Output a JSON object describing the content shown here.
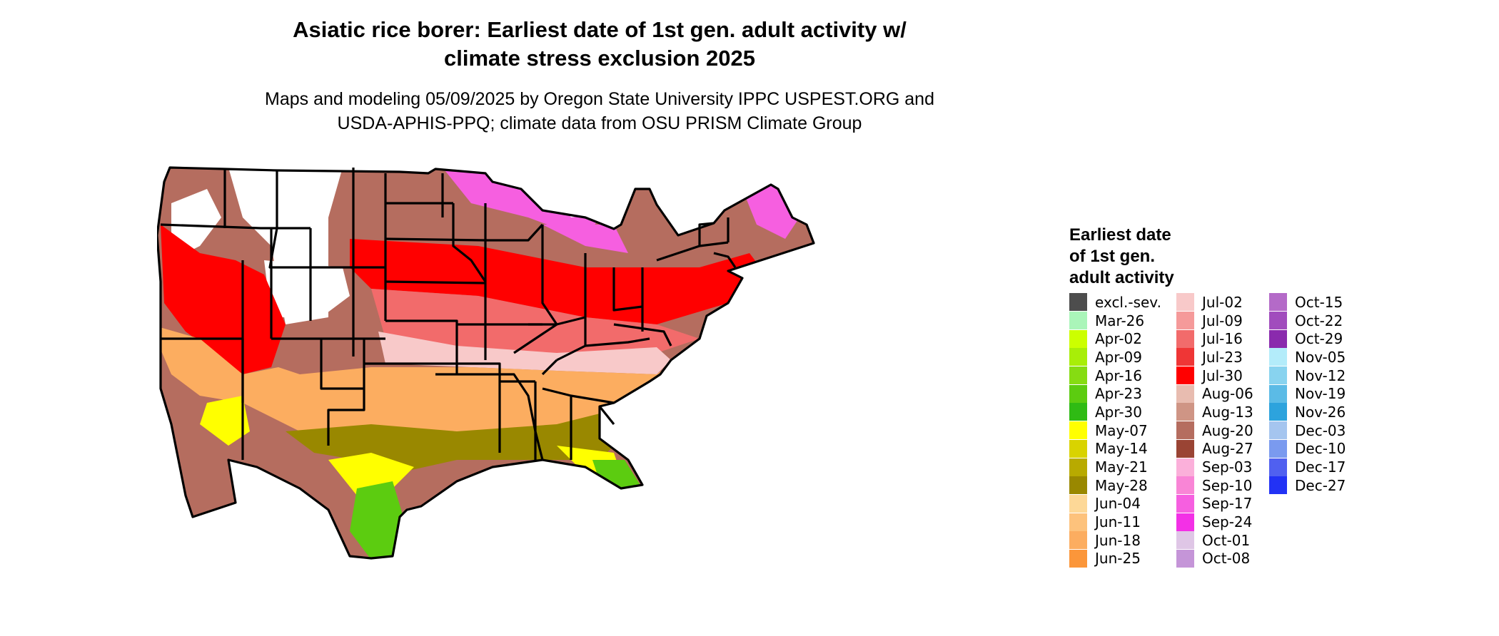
{
  "title": {
    "line1": "Asiatic rice borer: Earliest date of 1st gen. adult activity w/",
    "line2": "climate stress exclusion 2025"
  },
  "subtitle": {
    "line1": "Maps and modeling 05/09/2025 by Oregon State University IPPC USPEST.ORG and",
    "line2": "USDA-APHIS-PPQ; climate data from OSU PRISM Climate Group"
  },
  "legend": {
    "title_lines": [
      "Earliest date",
      "of 1st gen.",
      "adult activity"
    ],
    "columns": [
      [
        {
          "label": "excl.-sev.",
          "color": "#4d4d4d"
        },
        {
          "label": "Mar-26",
          "color": "#aaf5b9"
        },
        {
          "label": "Apr-02",
          "color": "#ccff00"
        },
        {
          "label": "Apr-09",
          "color": "#a8ee08"
        },
        {
          "label": "Apr-16",
          "color": "#86dc12"
        },
        {
          "label": "Apr-23",
          "color": "#5ccc10"
        },
        {
          "label": "Apr-30",
          "color": "#2fbb14"
        },
        {
          "label": "May-07",
          "color": "#ffff00"
        },
        {
          "label": "May-14",
          "color": "#d9d300"
        },
        {
          "label": "May-21",
          "color": "#b8aa00"
        },
        {
          "label": "May-28",
          "color": "#998800"
        },
        {
          "label": "Jun-04",
          "color": "#fdd897"
        },
        {
          "label": "Jun-11",
          "color": "#fdc27c"
        },
        {
          "label": "Jun-18",
          "color": "#fcad60"
        },
        {
          "label": "Jun-25",
          "color": "#fb963a"
        }
      ],
      [
        {
          "label": "Jul-02",
          "color": "#f8c9c9"
        },
        {
          "label": "Jul-09",
          "color": "#f59a9a"
        },
        {
          "label": "Jul-16",
          "color": "#f26b6b"
        },
        {
          "label": "Jul-23",
          "color": "#ef3636"
        },
        {
          "label": "Jul-30",
          "color": "#ff0000"
        },
        {
          "label": "Aug-06",
          "color": "#e8bcb0"
        },
        {
          "label": "Aug-13",
          "color": "#cf9585"
        },
        {
          "label": "Aug-20",
          "color": "#b56d5f"
        },
        {
          "label": "Aug-27",
          "color": "#9a4434"
        },
        {
          "label": "Sep-03",
          "color": "#fbb0da"
        },
        {
          "label": "Sep-10",
          "color": "#f985d6"
        },
        {
          "label": "Sep-17",
          "color": "#f65fe0"
        },
        {
          "label": "Sep-24",
          "color": "#f330e6"
        },
        {
          "label": "Oct-01",
          "color": "#dfc6e6"
        },
        {
          "label": "Oct-08",
          "color": "#c595d8"
        }
      ],
      [
        {
          "label": "Oct-15",
          "color": "#b46ac8"
        },
        {
          "label": "Oct-22",
          "color": "#a14cbd"
        },
        {
          "label": "Oct-29",
          "color": "#8a2aad"
        },
        {
          "label": "Nov-05",
          "color": "#b3ecfa"
        },
        {
          "label": "Nov-12",
          "color": "#88d3ef"
        },
        {
          "label": "Nov-19",
          "color": "#5bbbe6"
        },
        {
          "label": "Nov-26",
          "color": "#2da3dd"
        },
        {
          "label": "Dec-03",
          "color": "#a5c5ef"
        },
        {
          "label": "Dec-10",
          "color": "#7a9aef"
        },
        {
          "label": "Dec-17",
          "color": "#5060f0"
        },
        {
          "label": "Dec-27",
          "color": "#2232f5"
        }
      ]
    ]
  },
  "map_colors": {
    "excluded": "#ffffff",
    "north_brown": "#b56d5f",
    "north_pink": "#f65fe0",
    "central_red": "#ff0000",
    "light_red": "#f26b6b",
    "light_pink": "#f8c9c9",
    "orange": "#fcad60",
    "olive": "#998800",
    "yellow": "#ffff00",
    "green": "#5ccc10",
    "border": "#000000"
  }
}
